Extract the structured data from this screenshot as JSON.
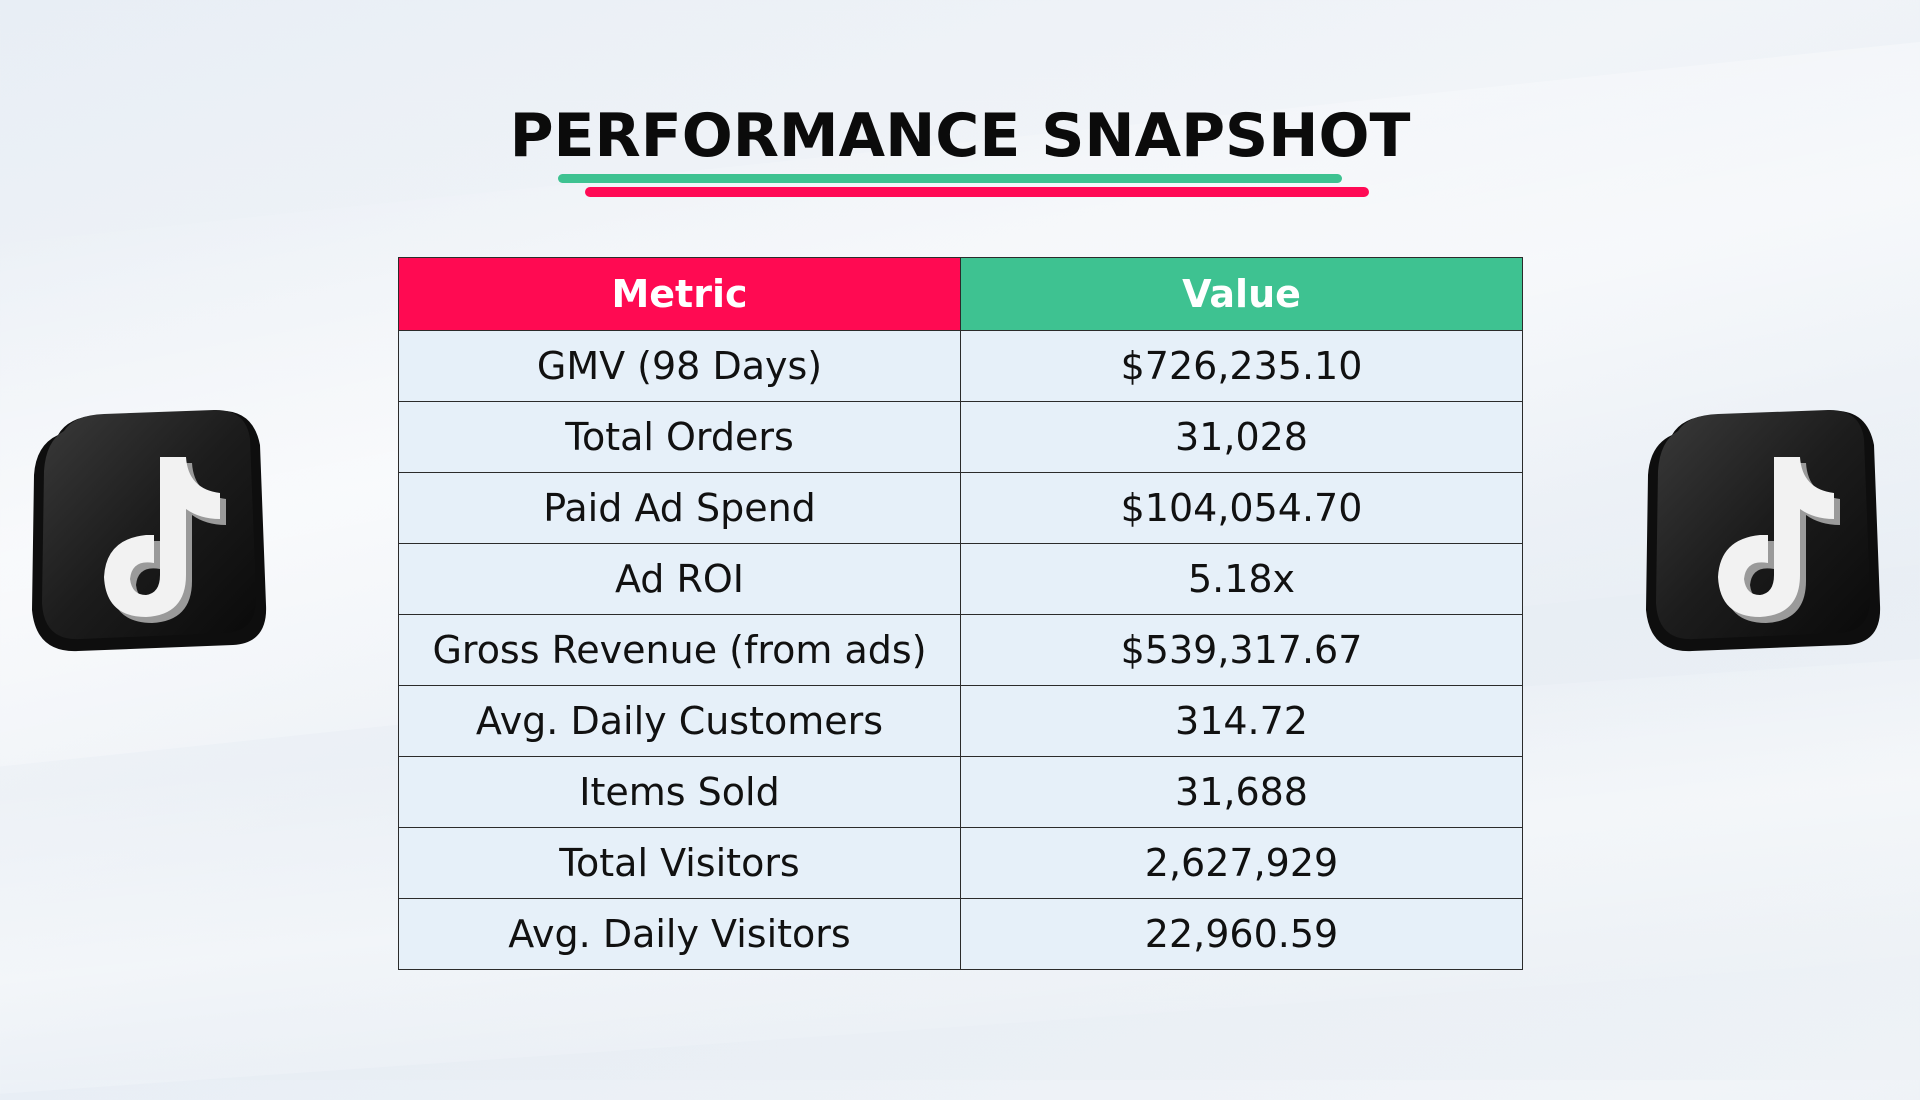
{
  "title": "PERFORMANCE SNAPSHOT",
  "colors": {
    "accent_red": "#ff0a52",
    "accent_green": "#3ec291",
    "row_background": "#e6f0f9",
    "title_text": "#0b0b0b"
  },
  "icons": {
    "left": "tiktok-logo-icon",
    "right": "tiktok-logo-icon"
  },
  "table": {
    "headers": {
      "metric": "Metric",
      "value": "Value"
    },
    "rows": [
      {
        "metric": "GMV (98 Days)",
        "value": "$726,235.10"
      },
      {
        "metric": "Total Orders",
        "value": "31,028"
      },
      {
        "metric": "Paid Ad Spend",
        "value": "$104,054.70"
      },
      {
        "metric": "Ad ROI",
        "value": "5.18x"
      },
      {
        "metric": "Gross Revenue (from ads)",
        "value": "$539,317.67"
      },
      {
        "metric": "Avg. Daily Customers",
        "value": "314.72"
      },
      {
        "metric": "Items Sold",
        "value": "31,688"
      },
      {
        "metric": "Total Visitors",
        "value": "2,627,929"
      },
      {
        "metric": "Avg. Daily Visitors",
        "value": "22,960.59"
      }
    ]
  }
}
